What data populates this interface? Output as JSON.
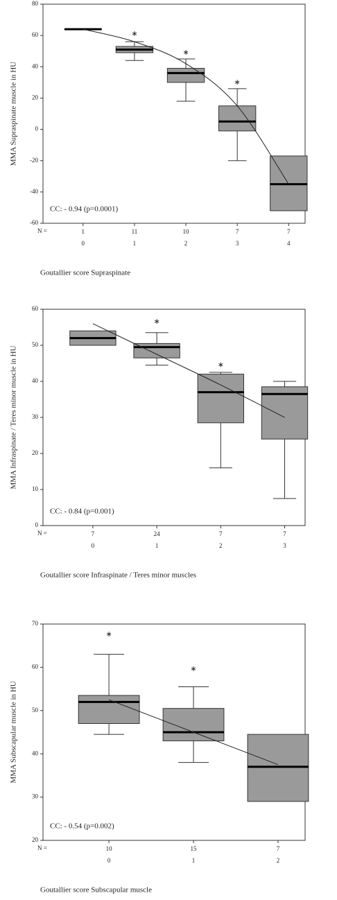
{
  "chart_data": [
    {
      "type": "box",
      "ylabel": "MMA Supraspinate muscle in HU",
      "xlabel": "Goutallier score Supraspinate",
      "annotation": "CC: - 0.94 (p=0.0001)",
      "n_label": "N =",
      "categories": [
        "0",
        "1",
        "2",
        "3",
        "4"
      ],
      "n_counts": [
        "1",
        "11",
        "10",
        "7",
        "7"
      ],
      "boxes": [
        {
          "min": 64,
          "q1": 64,
          "median": 64,
          "q3": 64,
          "max": 64,
          "extreme": null
        },
        {
          "min": 44,
          "q1": 49,
          "median": 51,
          "q3": 53,
          "max": 56,
          "extreme": 62
        },
        {
          "min": 18,
          "q1": 30,
          "median": 36,
          "q3": 39,
          "max": 45,
          "extreme": 50
        },
        {
          "min": -20,
          "q1": -1,
          "median": 5,
          "q3": 15,
          "max": 26,
          "extreme": 31
        },
        {
          "min": null,
          "q1": -52,
          "median": -35,
          "q3": -17,
          "max": null,
          "extreme": null
        }
      ],
      "fit": [
        64,
        56,
        42,
        15,
        -35
      ],
      "ylim": [
        -60,
        80
      ],
      "yticks": [
        -60,
        -40,
        -20,
        0,
        20,
        40,
        60,
        80
      ],
      "color": "#9a9a9a"
    },
    {
      "type": "box",
      "ylabel": "MMA Infraspinate / Teres minor muscle in HU",
      "xlabel": "Goutallier score Infraspinate / Teres minor muscles",
      "annotation": "CC: - 0.84 (p=0.001)",
      "n_label": "N =",
      "categories": [
        "0",
        "1",
        "2",
        "3"
      ],
      "n_counts": [
        "7",
        "24",
        "7",
        "7"
      ],
      "boxes": [
        {
          "min": null,
          "q1": 50,
          "median": 52,
          "q3": 54,
          "max": null,
          "extreme": null
        },
        {
          "min": 44.5,
          "q1": 46.5,
          "median": 49.5,
          "q3": 50.5,
          "max": 53.5,
          "extreme": 57
        },
        {
          "min": 16,
          "q1": 28.5,
          "median": 37,
          "q3": 42,
          "max": 42.5,
          "extreme": 45
        },
        {
          "min": 7.5,
          "q1": 24,
          "median": 36.5,
          "q3": 38.5,
          "max": 40,
          "extreme": null
        }
      ],
      "fit": [
        56,
        47.5,
        39,
        30
      ],
      "ylim": [
        0,
        60
      ],
      "yticks": [
        0,
        10,
        20,
        30,
        40,
        50,
        60
      ],
      "color": "#9a9a9a"
    },
    {
      "type": "box",
      "ylabel": "MMA Subscapular muscle in HU",
      "xlabel": "Goutallier score Subscapular muscle",
      "annotation": "CC: - 0.54 (p=0.002)",
      "n_label": "N =",
      "categories": [
        "0",
        "1",
        "2"
      ],
      "n_counts": [
        "10",
        "15",
        "7"
      ],
      "boxes": [
        {
          "min": 44.5,
          "q1": 47,
          "median": 52,
          "q3": 53.5,
          "max": 63,
          "extreme": 68
        },
        {
          "min": 38,
          "q1": 43,
          "median": 45,
          "q3": 50.5,
          "max": 55.5,
          "extreme": 60
        },
        {
          "min": null,
          "q1": 29,
          "median": 37,
          "q3": 44.5,
          "max": null,
          "extreme": null
        }
      ],
      "fit": [
        52.5,
        45,
        37.5
      ],
      "ylim": [
        20,
        70
      ],
      "yticks": [
        20,
        30,
        40,
        50,
        60,
        70
      ],
      "color": "#9a9a9a"
    }
  ]
}
